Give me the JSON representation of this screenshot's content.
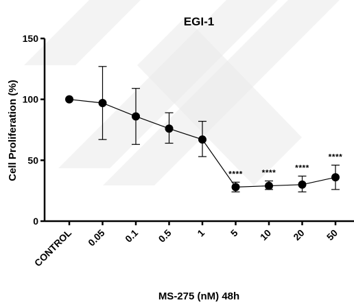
{
  "chart_data": {
    "type": "line",
    "title": "EGI-1",
    "xlabel": "MS-275 (nM) 48h",
    "ylabel": "Cell Proliferation (%)",
    "categories": [
      "CONTROL",
      "0.05",
      "0.1",
      "0.5",
      "1",
      "5",
      "10",
      "20",
      "50"
    ],
    "series": [
      {
        "values": [
          100,
          97,
          86,
          76,
          67,
          28,
          29,
          30,
          36
        ],
        "error_upper": [
          100,
          127,
          109,
          89,
          82,
          32,
          33,
          37,
          46
        ],
        "error_lower": [
          100,
          67,
          63,
          64,
          53,
          24,
          26,
          24,
          26
        ]
      }
    ],
    "annotations": [
      "",
      "",
      "",
      "",
      "",
      "****",
      "****",
      "****",
      "****"
    ],
    "ylim": [
      0,
      150
    ],
    "yticks": [
      0,
      50,
      100,
      150
    ],
    "grid": false,
    "legend": "none",
    "colors": {
      "marker": "#000000",
      "line": "#000000",
      "background": "#ffffff"
    }
  }
}
